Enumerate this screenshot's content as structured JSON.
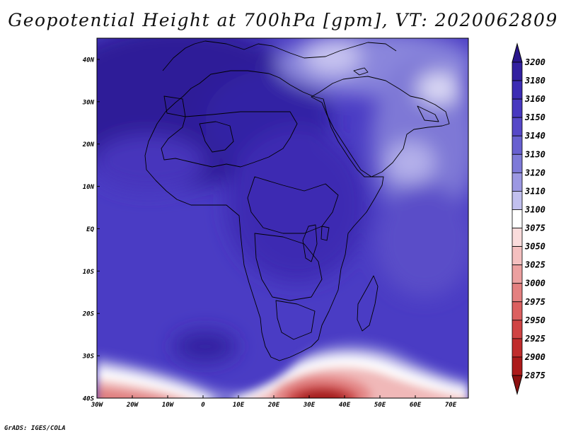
{
  "title": "Geopotential Height at 700hPa [gpm], VT: 2020062809",
  "credit": "GrADS: IGES/COLA",
  "map": {
    "lat_labels": [
      "40N",
      "30N",
      "20N",
      "10N",
      "EQ",
      "10S",
      "20S",
      "30S",
      "40S"
    ],
    "lon_labels": [
      "30W",
      "20W",
      "10W",
      "0",
      "10E",
      "20E",
      "30E",
      "40E",
      "50E",
      "60E",
      "70E"
    ]
  },
  "colorbar": {
    "levels": [
      "3200",
      "3180",
      "3160",
      "3150",
      "3140",
      "3130",
      "3120",
      "3110",
      "3100",
      "3075",
      "3050",
      "3025",
      "3000",
      "2975",
      "2950",
      "2925",
      "2900",
      "2875"
    ],
    "colors": [
      "#2a168c",
      "#3220a0",
      "#3c2cb4",
      "#4838c0",
      "#5648c8",
      "#6860d0",
      "#7e7ad8",
      "#9c98e2",
      "#c2c0ee",
      "#ffffff",
      "#fadcdc",
      "#f4c0c0",
      "#eca0a0",
      "#e48080",
      "#dc6060",
      "#d04444",
      "#c02c2c",
      "#ac1a1a",
      "#8c1010"
    ]
  }
}
